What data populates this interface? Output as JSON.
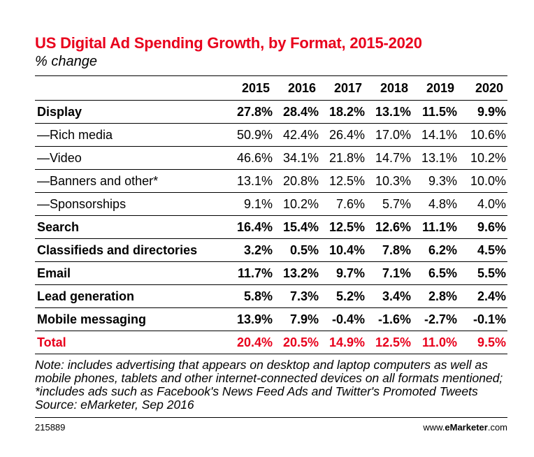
{
  "title": "US Digital Ad Spending Growth, by Format, 2015-2020",
  "subtitle": "% change",
  "columns": [
    "2015",
    "2016",
    "2017",
    "2018",
    "2019",
    "2020"
  ],
  "rows": [
    {
      "label": "Display",
      "bold": true,
      "values": [
        "27.8%",
        "28.4%",
        "18.2%",
        "13.1%",
        "11.5%",
        "9.9%"
      ]
    },
    {
      "label": "—Rich media",
      "bold": false,
      "values": [
        "50.9%",
        "42.4%",
        "26.4%",
        "17.0%",
        "14.1%",
        "10.6%"
      ]
    },
    {
      "label": "—Video",
      "bold": false,
      "values": [
        "46.6%",
        "34.1%",
        "21.8%",
        "14.7%",
        "13.1%",
        "10.2%"
      ]
    },
    {
      "label": "—Banners and other*",
      "bold": false,
      "values": [
        "13.1%",
        "20.8%",
        "12.5%",
        "10.3%",
        "9.3%",
        "10.0%"
      ]
    },
    {
      "label": "—Sponsorships",
      "bold": false,
      "values": [
        "9.1%",
        "10.2%",
        "7.6%",
        "5.7%",
        "4.8%",
        "4.0%"
      ]
    },
    {
      "label": "Search",
      "bold": true,
      "values": [
        "16.4%",
        "15.4%",
        "12.5%",
        "12.6%",
        "11.1%",
        "9.6%"
      ]
    },
    {
      "label": "Classifieds and directories",
      "bold": true,
      "values": [
        "3.2%",
        "0.5%",
        "10.4%",
        "7.8%",
        "6.2%",
        "4.5%"
      ]
    },
    {
      "label": "Email",
      "bold": true,
      "values": [
        "11.7%",
        "13.2%",
        "9.7%",
        "7.1%",
        "6.5%",
        "5.5%"
      ]
    },
    {
      "label": "Lead generation",
      "bold": true,
      "values": [
        "5.8%",
        "7.3%",
        "5.2%",
        "3.4%",
        "2.8%",
        "2.4%"
      ]
    },
    {
      "label": "Mobile messaging",
      "bold": true,
      "values": [
        "13.9%",
        "7.9%",
        "-0.4%",
        "-1.6%",
        "-2.7%",
        "-0.1%"
      ]
    },
    {
      "label": "Total",
      "total": true,
      "values": [
        "20.4%",
        "20.5%",
        "14.9%",
        "12.5%",
        "11.0%",
        "9.5%"
      ]
    }
  ],
  "note": "Note: includes advertising that appears on desktop and laptop computers as well as mobile phones, tablets and other internet-connected devices on all formats mentioned; *includes ads such as Facebook's News Feed Ads and Twitter's Promoted Tweets",
  "source": "Source: eMarketer, Sep 2016",
  "footer": {
    "id": "215889",
    "brand_prefix": "www.",
    "brand_name": "eMarketer",
    "brand_suffix": ".com"
  },
  "accent_color": "#e8001c",
  "chart_data": {
    "type": "table",
    "title": "US Digital Ad Spending Growth, by Format, 2015-2020",
    "subtitle": "% change",
    "categories": [
      "2015",
      "2016",
      "2017",
      "2018",
      "2019",
      "2020"
    ],
    "series": [
      {
        "name": "Display",
        "values": [
          27.8,
          28.4,
          18.2,
          13.1,
          11.5,
          9.9
        ]
      },
      {
        "name": "—Rich media",
        "values": [
          50.9,
          42.4,
          26.4,
          17.0,
          14.1,
          10.6
        ]
      },
      {
        "name": "—Video",
        "values": [
          46.6,
          34.1,
          21.8,
          14.7,
          13.1,
          10.2
        ]
      },
      {
        "name": "—Banners and other*",
        "values": [
          13.1,
          20.8,
          12.5,
          10.3,
          9.3,
          10.0
        ]
      },
      {
        "name": "—Sponsorships",
        "values": [
          9.1,
          10.2,
          7.6,
          5.7,
          4.8,
          4.0
        ]
      },
      {
        "name": "Search",
        "values": [
          16.4,
          15.4,
          12.5,
          12.6,
          11.1,
          9.6
        ]
      },
      {
        "name": "Classifieds and directories",
        "values": [
          3.2,
          0.5,
          10.4,
          7.8,
          6.2,
          4.5
        ]
      },
      {
        "name": "Email",
        "values": [
          11.7,
          13.2,
          9.7,
          7.1,
          6.5,
          5.5
        ]
      },
      {
        "name": "Lead generation",
        "values": [
          5.8,
          7.3,
          5.2,
          3.4,
          2.8,
          2.4
        ]
      },
      {
        "name": "Mobile messaging",
        "values": [
          13.9,
          7.9,
          -0.4,
          -1.6,
          -2.7,
          -0.1
        ]
      },
      {
        "name": "Total",
        "values": [
          20.4,
          20.5,
          14.9,
          12.5,
          11.0,
          9.5
        ]
      }
    ]
  }
}
